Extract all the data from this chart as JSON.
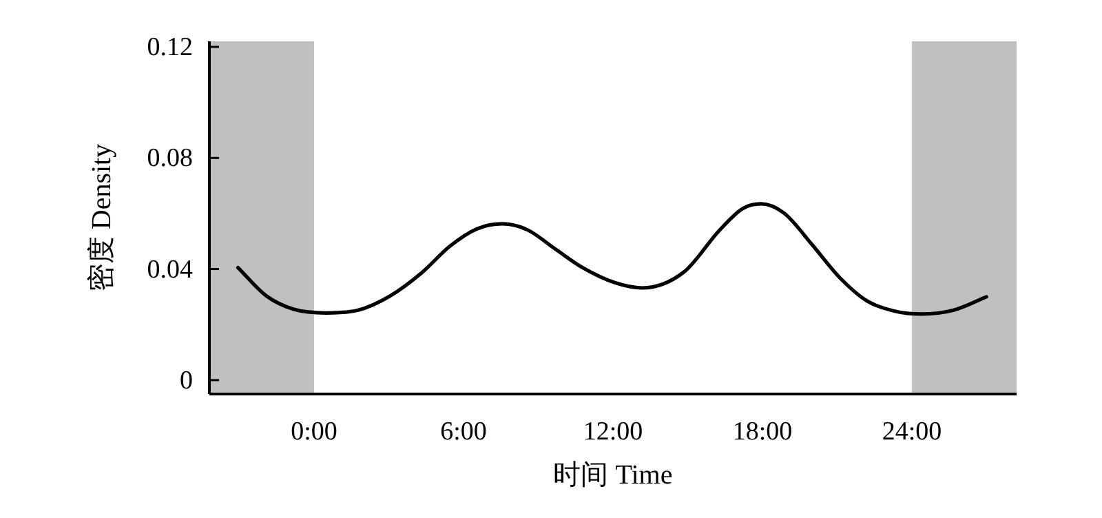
{
  "chart_data": {
    "type": "line",
    "xlabel": "时间 Time",
    "ylabel": "密度 Density",
    "x": [
      -3.05,
      -1.91,
      -0.81,
      0.48,
      1.77,
      3.05,
      4.34,
      5.45,
      6.55,
      7.56,
      8.57,
      9.67,
      10.78,
      12.07,
      13.17,
      14.83,
      16.29,
      17.21,
      17.95,
      18.87,
      19.97,
      21.08,
      22.18,
      23.28,
      24.39,
      25.67,
      26.99
    ],
    "series": [
      {
        "color": "#000000",
        "values": [
          0.0405,
          0.0303,
          0.0255,
          0.0242,
          0.0252,
          0.0303,
          0.0388,
          0.0482,
          0.0545,
          0.0563,
          0.0541,
          0.0473,
          0.0405,
          0.0351,
          0.0332,
          0.0388,
          0.0541,
          0.0618,
          0.0635,
          0.0601,
          0.049,
          0.0371,
          0.0286,
          0.0249,
          0.0238,
          0.0252,
          0.03
        ]
      }
    ],
    "xlim": [
      -4.2,
      28.2
    ],
    "ylim": [
      -0.005,
      0.122
    ],
    "xticks": [
      {
        "value": 0,
        "label": "0:00"
      },
      {
        "value": 6,
        "label": "6:00"
      },
      {
        "value": 12,
        "label": "12:00"
      },
      {
        "value": 18,
        "label": "18:00"
      },
      {
        "value": 24,
        "label": "24:00"
      }
    ],
    "yticks": [
      0,
      0.04,
      0.08,
      0.12
    ],
    "bands": [
      {
        "axis": "x",
        "from": -4.2,
        "to": 0,
        "color": "#c0c0c0"
      },
      {
        "axis": "x",
        "from": 24,
        "to": 28.2,
        "color": "#c0c0c0"
      }
    ],
    "grid": false,
    "marker": "none",
    "line_style": "solid"
  }
}
